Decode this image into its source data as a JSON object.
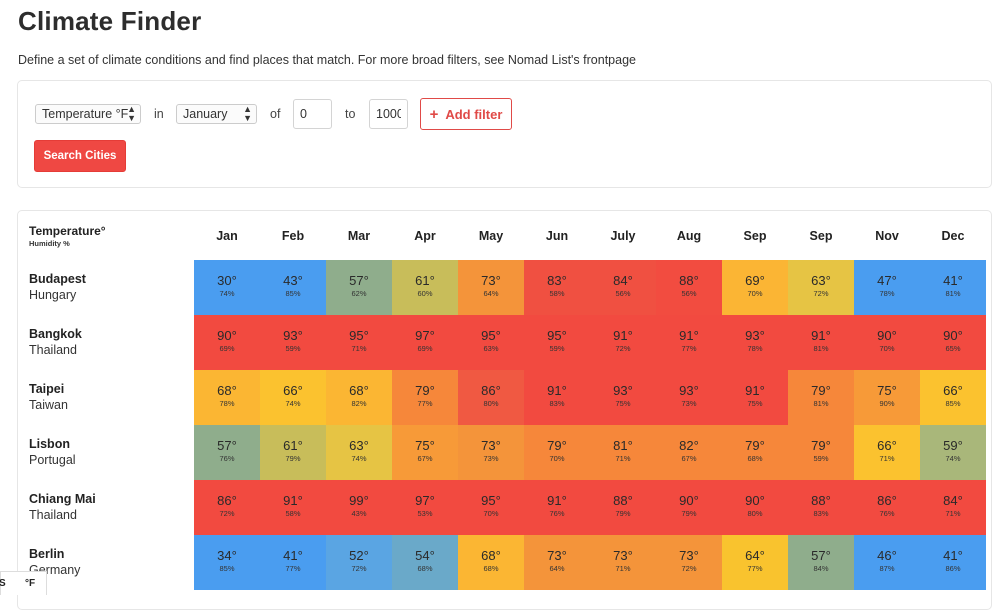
{
  "page": {
    "title": "Climate Finder",
    "subtitle": "Define a set of climate conditions and find places that match. For more broad filters, see Nomad List's frontpage"
  },
  "filter": {
    "metric": "Temperature °F",
    "in_label": "in",
    "month": "January",
    "of_label": "of",
    "from_value": "0",
    "to_label": "to",
    "to_value": "1000",
    "add_filter_icon": "plus-icon",
    "add_filter_label": "Add filter",
    "search_label": "Search Cities"
  },
  "table": {
    "header_title": "Temperature°",
    "header_subtitle": "Humidity %",
    "months": [
      "Jan",
      "Feb",
      "Mar",
      "Apr",
      "May",
      "Jun",
      "July",
      "Aug",
      "Sep",
      "Sep",
      "Nov",
      "Dec"
    ],
    "rows": [
      {
        "city": "Budapest",
        "country": "Hungary",
        "temps": [
          "30°",
          "43°",
          "57°",
          "61°",
          "73°",
          "83°",
          "84°",
          "88°",
          "69°",
          "63°",
          "47°",
          "41°"
        ],
        "humidity": [
          "74%",
          "85%",
          "62%",
          "60%",
          "64%",
          "58%",
          "56%",
          "56%",
          "70%",
          "72%",
          "78%",
          "81%"
        ],
        "colors": [
          "#4a9df0",
          "#4a9df0",
          "#8fad8c",
          "#c8bd5a",
          "#f4943a",
          "#f05041",
          "#f05041",
          "#f24c40",
          "#fbb534",
          "#e6c444",
          "#4a9df0",
          "#4a9df0"
        ]
      },
      {
        "city": "Bangkok",
        "country": "Thailand",
        "temps": [
          "90°",
          "93°",
          "95°",
          "97°",
          "95°",
          "95°",
          "91°",
          "91°",
          "93°",
          "91°",
          "90°",
          "90°"
        ],
        "humidity": [
          "69%",
          "59%",
          "71%",
          "69%",
          "63%",
          "59%",
          "72%",
          "77%",
          "78%",
          "81%",
          "70%",
          "65%"
        ],
        "colors": [
          "#f24a40",
          "#f24a40",
          "#f24a40",
          "#f24a40",
          "#f24a40",
          "#f24a40",
          "#f24a40",
          "#f24a40",
          "#f24a40",
          "#f24a40",
          "#f24a40",
          "#f24a40"
        ]
      },
      {
        "city": "Taipei",
        "country": "Taiwan",
        "temps": [
          "68°",
          "66°",
          "68°",
          "79°",
          "86°",
          "91°",
          "93°",
          "93°",
          "91°",
          "79°",
          "75°",
          "66°"
        ],
        "humidity": [
          "78%",
          "74%",
          "82%",
          "77%",
          "80%",
          "83%",
          "75%",
          "73%",
          "75%",
          "81%",
          "90%",
          "85%"
        ],
        "colors": [
          "#fbb633",
          "#fbc22f",
          "#fbb633",
          "#f6873a",
          "#f05942",
          "#f24a40",
          "#f24a40",
          "#f24a40",
          "#f24a40",
          "#f6873a",
          "#f79a38",
          "#fbc22f"
        ]
      },
      {
        "city": "Lisbon",
        "country": "Portugal",
        "temps": [
          "57°",
          "61°",
          "63°",
          "75°",
          "73°",
          "79°",
          "81°",
          "82°",
          "79°",
          "79°",
          "66°",
          "59°"
        ],
        "humidity": [
          "76%",
          "79%",
          "74%",
          "67%",
          "73%",
          "70%",
          "71%",
          "67%",
          "68%",
          "59%",
          "71%",
          "74%"
        ],
        "colors": [
          "#8fad8c",
          "#c8bd5a",
          "#e6c444",
          "#f79a38",
          "#f4943a",
          "#f6873a",
          "#f6873a",
          "#f6873a",
          "#f6873a",
          "#f6873a",
          "#fbc22f",
          "#a9b77a"
        ]
      },
      {
        "city": "Chiang Mai",
        "country": "Thailand",
        "temps": [
          "86°",
          "91°",
          "99°",
          "97°",
          "95°",
          "91°",
          "88°",
          "90°",
          "90°",
          "88°",
          "86°",
          "84°"
        ],
        "humidity": [
          "72%",
          "58%",
          "43%",
          "53%",
          "70%",
          "76%",
          "79%",
          "79%",
          "80%",
          "83%",
          "76%",
          "71%"
        ],
        "colors": [
          "#f24a40",
          "#f24a40",
          "#f24a40",
          "#f24a40",
          "#f24a40",
          "#f24a40",
          "#f24a40",
          "#f24a40",
          "#f24a40",
          "#f24a40",
          "#f24a40",
          "#f24a40"
        ]
      },
      {
        "city": "Berlin",
        "country": "Germany",
        "temps": [
          "34°",
          "41°",
          "52°",
          "54°",
          "68°",
          "73°",
          "73°",
          "73°",
          "64°",
          "57°",
          "46°",
          "41°"
        ],
        "humidity": [
          "85%",
          "77%",
          "72%",
          "68%",
          "68%",
          "64%",
          "71%",
          "72%",
          "77%",
          "84%",
          "87%",
          "86%"
        ],
        "colors": [
          "#4a9df0",
          "#4a9df0",
          "#5aa5e3",
          "#6aa9c9",
          "#fbb633",
          "#f4943a",
          "#f4943a",
          "#f4943a",
          "#f9c32e",
          "#8fad8c",
          "#4a9df0",
          "#4a9df0"
        ]
      }
    ]
  },
  "units": {
    "left": "S",
    "right": "°F"
  }
}
